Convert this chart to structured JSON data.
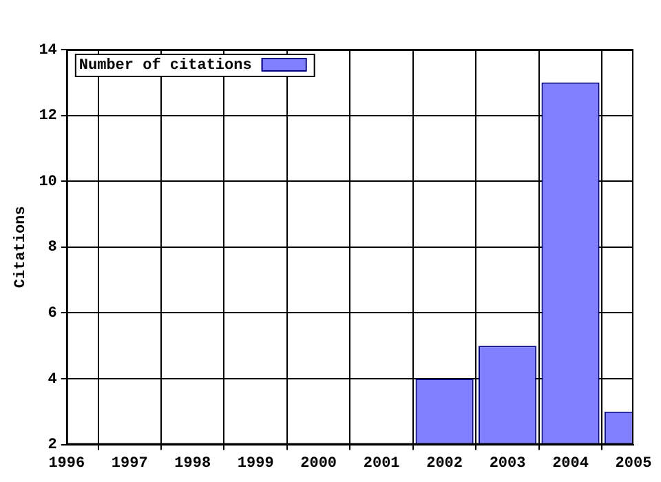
{
  "chart_data": {
    "type": "bar",
    "ylabel": "Citations",
    "x": [
      2002,
      2003,
      2004,
      2005
    ],
    "series": [
      {
        "name": "Number of citations",
        "color": "#8080ff",
        "values": [
          4,
          5,
          13,
          3
        ]
      }
    ],
    "xlim": [
      1996,
      2005
    ],
    "xticks": [
      1996,
      1997,
      1998,
      1999,
      2000,
      2001,
      2002,
      2003,
      2004,
      2005
    ],
    "ylim": [
      2,
      14
    ],
    "yticks": [
      2,
      4,
      6,
      8,
      10,
      12,
      14
    ],
    "grid": true,
    "legend": "top left"
  }
}
